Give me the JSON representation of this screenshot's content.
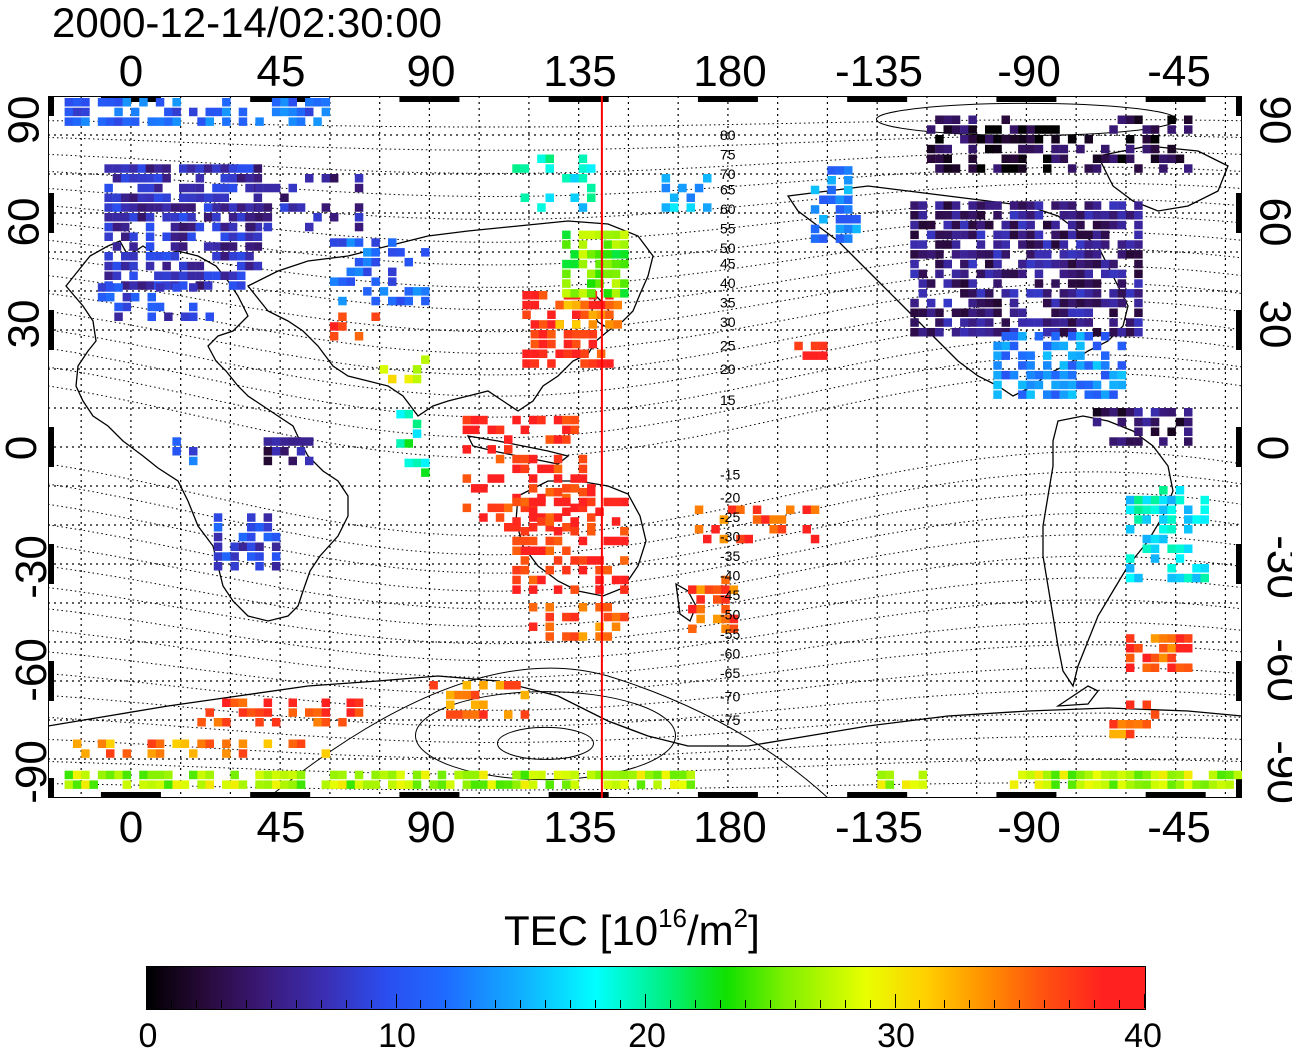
{
  "timestamp": "2000-12-14/02:30:00",
  "axes": {
    "x_top_ticks": [
      "0",
      "45",
      "90",
      "135",
      "180",
      "-135",
      "-90",
      "-45"
    ],
    "x_bottom_ticks": [
      "0",
      "45",
      "90",
      "135",
      "180",
      "-135",
      "-90",
      "-45"
    ],
    "y_left_ticks": [
      "90",
      "60",
      "30",
      "0",
      "-30",
      "-60",
      "-90"
    ],
    "y_right_ticks": [
      "90",
      "60",
      "30",
      "0",
      "-30",
      "-60",
      "-90"
    ],
    "x_range": [
      -25,
      335
    ],
    "y_range": [
      -90,
      90
    ]
  },
  "contour_labels": [
    "80",
    "75",
    "70",
    "65",
    "60",
    "55",
    "50",
    "45",
    "40",
    "35",
    "30",
    "25",
    "20",
    "15",
    "-15",
    "-20",
    "-25",
    "-30",
    "-35",
    "-40",
    "-45",
    "-50",
    "-55",
    "-60",
    "-65",
    "-70",
    "-75"
  ],
  "meridian_longitude": 142,
  "colorbar": {
    "title_main": "TEC  [10",
    "title_exp1": "16",
    "title_mid": "/m",
    "title_exp2": "2",
    "title_end": "]",
    "ticks": [
      "0",
      "10",
      "20",
      "30",
      "40"
    ],
    "range": [
      0,
      40
    ]
  },
  "colors": {
    "meridian": "#ff0000",
    "grid": "#000000",
    "frame": "#000000"
  }
}
